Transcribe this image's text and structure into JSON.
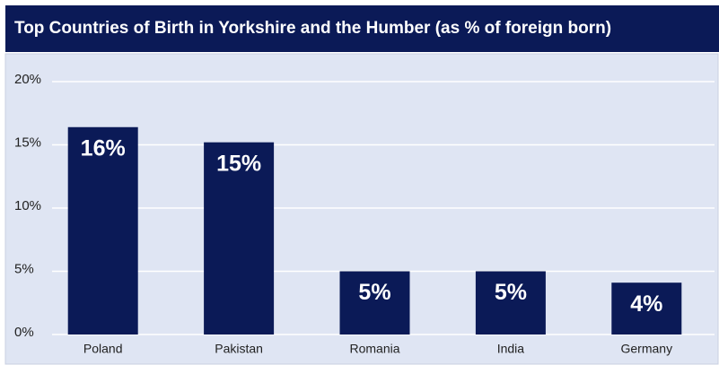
{
  "chart_data": {
    "type": "bar",
    "title": "Top Countries of Birth in Yorkshire and the Humber (as % of foreign born)",
    "categories": [
      "Poland",
      "Pakistan",
      "Romania",
      "India",
      "Germany"
    ],
    "values": [
      16.4,
      15.2,
      5.0,
      5.0,
      4.1
    ],
    "value_labels": [
      "16%",
      "15%",
      "5%",
      "5%",
      "4%"
    ],
    "color": "#0b1a57",
    "ylim": [
      0,
      20
    ],
    "yticks": [
      {
        "value": 0,
        "label": "0%"
      },
      {
        "value": 5,
        "label": "5%"
      },
      {
        "value": 10,
        "label": "10%"
      },
      {
        "value": 15,
        "label": "15%"
      },
      {
        "value": 20,
        "label": "20%"
      }
    ],
    "grid": true
  }
}
